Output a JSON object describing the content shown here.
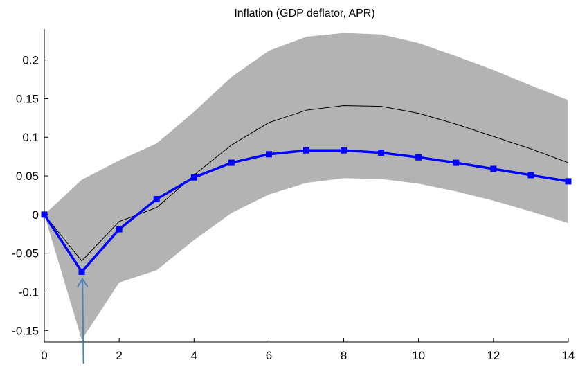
{
  "chart_data": {
    "type": "line",
    "title": "Inflation (GDP deflator, APR)",
    "xlabel": "",
    "ylabel": "",
    "xlim": [
      0,
      14
    ],
    "ylim": [
      -0.165,
      0.24
    ],
    "xticks": [
      0,
      2,
      4,
      6,
      8,
      10,
      12,
      14
    ],
    "xtick_labels": [
      "0",
      "2",
      "4",
      "6",
      "8",
      "10",
      "12",
      "14"
    ],
    "yticks": [
      -0.15,
      -0.1,
      -0.05,
      0,
      0.05,
      0.1,
      0.15,
      0.2
    ],
    "ytick_labels": [
      "-0.15",
      "-0.1",
      "-0.05",
      "0",
      "0.05",
      "0.1",
      "0.15",
      "0.2"
    ],
    "grid": false,
    "legend": "none",
    "x": [
      0,
      1,
      2,
      3,
      4,
      5,
      6,
      7,
      8,
      9,
      10,
      11,
      12,
      13,
      14
    ],
    "band": {
      "lower": [
        0,
        -0.162,
        -0.088,
        -0.072,
        -0.033,
        0.002,
        0.026,
        0.041,
        0.047,
        0.046,
        0.04,
        0.03,
        0.018,
        0.004,
        -0.011
      ],
      "upper": [
        0,
        0.045,
        0.07,
        0.092,
        0.133,
        0.178,
        0.212,
        0.23,
        0.235,
        0.233,
        0.222,
        0.205,
        0.187,
        0.167,
        0.148
      ],
      "color": "#b3b3b3"
    },
    "series": [
      {
        "values": [
          0,
          -0.06,
          -0.009,
          0.009,
          0.051,
          0.09,
          0.119,
          0.135,
          0.141,
          0.14,
          0.131,
          0.117,
          0.101,
          0.085,
          0.067
        ],
        "color": "#000000",
        "marker": "none"
      },
      {
        "values": [
          0,
          -0.074,
          -0.019,
          0.02,
          0.048,
          0.067,
          0.078,
          0.083,
          0.083,
          0.08,
          0.074,
          0.067,
          0.059,
          0.051,
          0.043
        ],
        "color": "#0000ff",
        "marker": "square"
      }
    ],
    "annotations": [
      {
        "type": "arrow",
        "from": [
          1.05,
          -0.145
        ],
        "to": [
          1.02,
          -0.083
        ],
        "color": "#4f81bd"
      }
    ]
  }
}
